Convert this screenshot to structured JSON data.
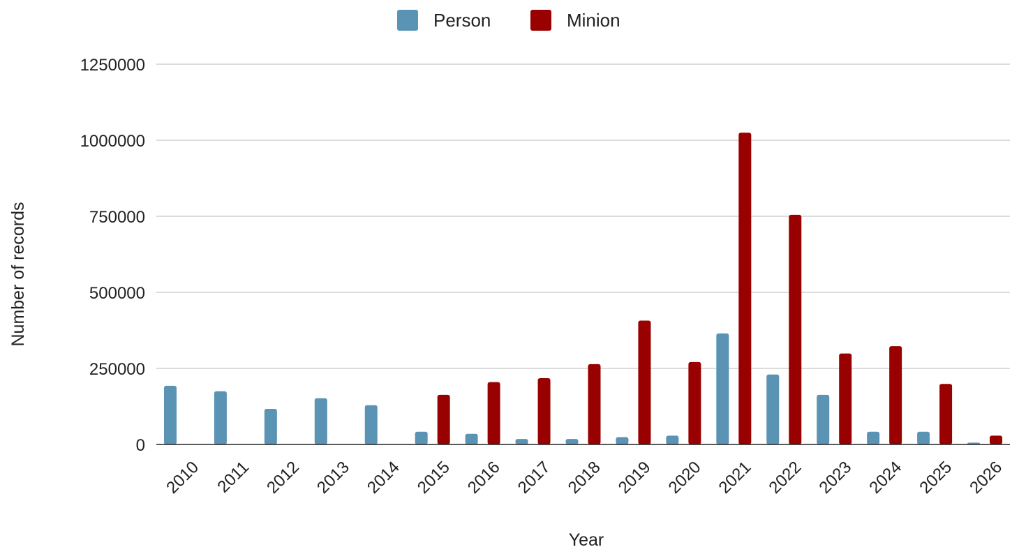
{
  "chart_data": {
    "type": "bar",
    "title": "",
    "xlabel": "Year",
    "ylabel": "Number of records",
    "ylim": [
      0,
      1250000
    ],
    "yticks": [
      "0",
      "250000",
      "500000",
      "750000",
      "1000000",
      "1250000"
    ],
    "grid": true,
    "legend_position": "top-center",
    "categories": [
      "2010",
      "2011",
      "2012",
      "2013",
      "2014",
      "2015",
      "2016",
      "2017",
      "2018",
      "2019",
      "2020",
      "2021",
      "2022",
      "2023",
      "2024",
      "2025",
      "2026"
    ],
    "series": [
      {
        "name": "Person",
        "color": "#5a93b3",
        "values": [
          193000,
          175000,
          117000,
          152000,
          129000,
          42000,
          35000,
          18000,
          18000,
          24000,
          29000,
          365000,
          230000,
          163000,
          42000,
          42000,
          6000
        ]
      },
      {
        "name": "Minion",
        "color": "#990000",
        "values": [
          0,
          0,
          0,
          0,
          0,
          163000,
          205000,
          218000,
          264000,
          407000,
          271000,
          1025000,
          755000,
          299000,
          323000,
          199000,
          29000
        ]
      }
    ]
  }
}
